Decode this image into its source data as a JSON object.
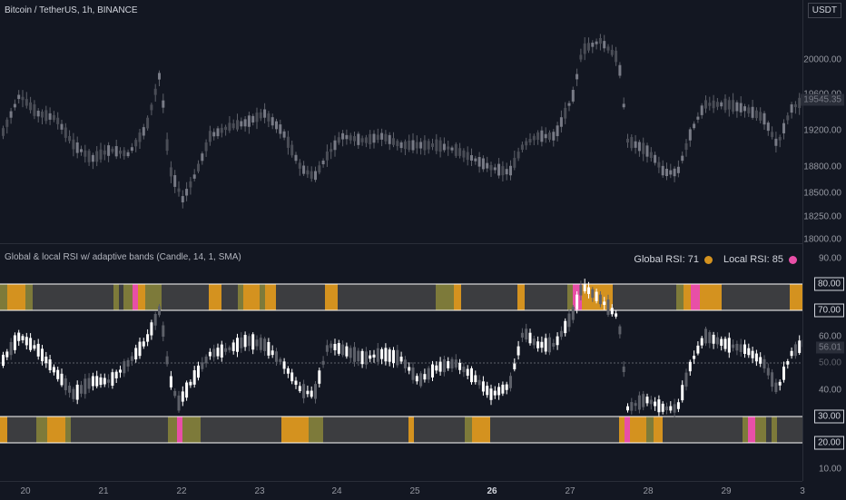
{
  "header": {
    "symbol_title": "Bitcoin / TetherUS, 1h, BINANCE",
    "currency": "USDT"
  },
  "price_axis": {
    "ticks": [
      "20000.00",
      "19600.00",
      "19200.00",
      "18800.00",
      "18500.00",
      "18250.00",
      "18000.00"
    ],
    "last_price": "19545.35"
  },
  "indicator": {
    "title": "Global & local RSI w/ adaptive bands (Candle, 14, 1, SMA)",
    "global_label": "Global RSI: 71",
    "local_label": "Local RSI: 85",
    "global_color": "#d4921f",
    "local_color": "#e84fa7"
  },
  "rsi_axis": {
    "ticks": [
      "90.00",
      "60.00",
      "40.00",
      "10.00"
    ],
    "band_labels": [
      "80.00",
      "70.00",
      "30.00",
      "20.00"
    ],
    "rsi_value": "56.01",
    "mid_value": "50.00"
  },
  "time_axis": {
    "labels": [
      "20",
      "21",
      "22",
      "23",
      "24",
      "25",
      "26",
      "27",
      "28",
      "29",
      "3"
    ],
    "bold_label": "26"
  },
  "colors": {
    "background": "#131722",
    "band_gray": "#3c3d40",
    "band_olive": "#7d7a3a",
    "band_orange": "#d4921f",
    "band_pink": "#e84fa7",
    "candle_white": "#ffffff",
    "candle_gray": "#5d6069"
  }
}
